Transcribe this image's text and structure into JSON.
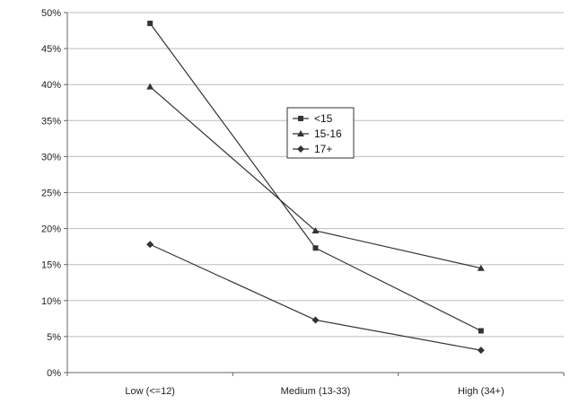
{
  "chart_data": {
    "type": "line",
    "title": "",
    "xlabel": "",
    "ylabel": "",
    "ylim": [
      0,
      50
    ],
    "y_format": "percent",
    "y_ticks": [
      "0%",
      "5%",
      "10%",
      "15%",
      "20%",
      "25%",
      "30%",
      "35%",
      "40%",
      "45%",
      "50%"
    ],
    "grid": true,
    "legend_position": "center",
    "categories": [
      "Low (<=12)",
      "Medium (13-33)",
      "High (34+)"
    ],
    "series": [
      {
        "name": "<15",
        "marker": "square",
        "values": [
          48.5,
          17.3,
          5.8
        ]
      },
      {
        "name": "15-16",
        "marker": "triangle",
        "values": [
          39.7,
          19.7,
          14.5
        ]
      },
      {
        "name": "17+",
        "marker": "diamond",
        "values": [
          17.8,
          7.3,
          3.1
        ]
      }
    ],
    "colors": {
      "line": "#333333",
      "grid": "#bdbdbd",
      "axis": "#666666"
    }
  }
}
